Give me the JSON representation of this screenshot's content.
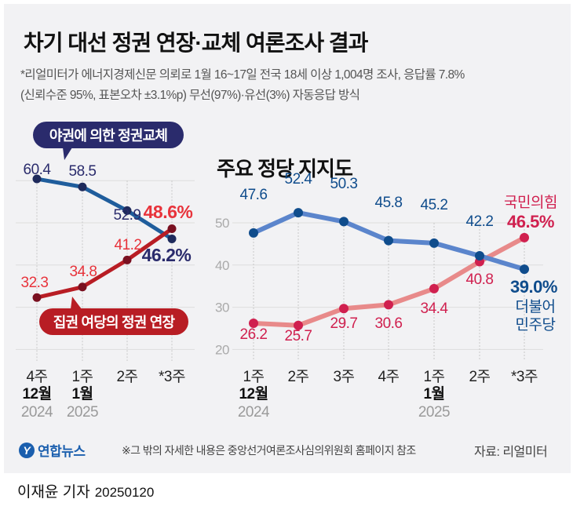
{
  "header": {
    "title": "차기 대선 정권 연장·교체 여론조사 결과",
    "subtitle_line1": "*리얼미터가 에너지경제신문 의뢰로 1월 16~17일 전국 18세 이상 1,004명 조사, 응답률 7.8%",
    "subtitle_line2": "(신뢰수준 95%, 표본오차 ±3.1%p) 무선(97%)·유선(3%) 자동응답 방식"
  },
  "footer": {
    "logo_text": "연합뉴스",
    "logo_icon": "yonhap-logo-icon",
    "footnote": "※그 밖의 자세한 내용은 중앙선거여론조사심의위원회 홈페이지 참조",
    "source": "자료: 리얼미터",
    "byline": "이재윤 기자",
    "date": "20250120"
  },
  "colors": {
    "panel_bg": "#f2f2f4",
    "opposition_line": "#1f5d9c",
    "opposition_marker": "#1e2a5c",
    "opposition_label": "#2a2b6c",
    "ruling_line": "#b81d24",
    "ruling_marker": "#7a1020",
    "ruling_label": "#e8333b",
    "dp_line": "#5b85cc",
    "dp_marker": "#0f4c8c",
    "dp_label": "#0f4c8c",
    "ppp_line": "#e88a8a",
    "ppp_marker": "#d0204f",
    "ppp_label": "#d0204f",
    "grid": "#dddddd",
    "axis_text": "#aaaaaa",
    "year_text": "#9a9a9a"
  },
  "chart_data": [
    {
      "type": "line",
      "title": "정권 연장·교체",
      "categories": [
        "4주",
        "1주",
        "2주",
        "*3주"
      ],
      "month_labels": [
        "12월",
        "1월",
        "",
        ""
      ],
      "year_labels": [
        "2024",
        "2025",
        "",
        ""
      ],
      "ylim": [
        20,
        60
      ],
      "grid": true,
      "series": [
        {
          "name": "야권에 의한 정권교체",
          "values": [
            60.4,
            58.5,
            52.9,
            46.2
          ],
          "last_label": "46.2%"
        },
        {
          "name": "집권 여당의 정권 연장",
          "values": [
            32.3,
            34.8,
            41.2,
            48.6
          ],
          "last_label": "48.6%"
        }
      ]
    },
    {
      "type": "line",
      "title": "주요 정당 지지도",
      "categories": [
        "1주",
        "2주",
        "3주",
        "4주",
        "1주",
        "2주",
        "*3주"
      ],
      "month_labels": [
        "12월",
        "",
        "",
        "",
        "1월",
        "",
        ""
      ],
      "year_labels": [
        "2024",
        "",
        "",
        "",
        "2025",
        "",
        ""
      ],
      "yticks": [
        20,
        30,
        40,
        50
      ],
      "ylim": [
        20,
        55
      ],
      "grid": true,
      "series": [
        {
          "name": "더불어민주당",
          "values": [
            47.6,
            52.4,
            50.3,
            45.8,
            45.2,
            42.2,
            39.0
          ],
          "last_label": "39.0%",
          "legend_line1": "더불어",
          "legend_line2": "민주당"
        },
        {
          "name": "국민의힘",
          "values": [
            26.2,
            25.7,
            29.7,
            30.6,
            34.4,
            40.8,
            46.5
          ],
          "last_label": "46.5%",
          "legend_line1": "국민의힘"
        }
      ]
    }
  ]
}
